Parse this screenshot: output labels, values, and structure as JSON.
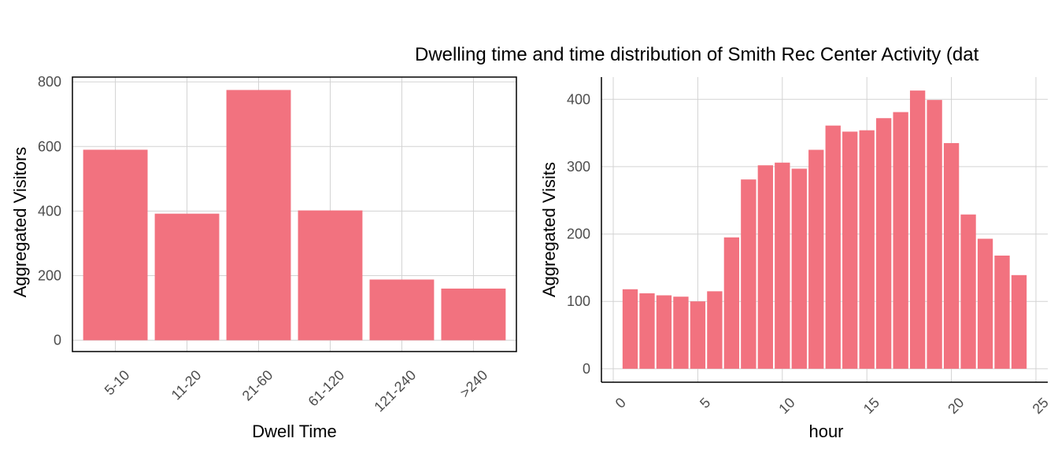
{
  "title": "Dwelling time and time distribution of Smith Rec Center Activity (dat",
  "colors": {
    "bar": "#f2727f",
    "grid": "#d3d3d3",
    "axis_text": "#4d4d4d"
  },
  "chart_data": [
    {
      "type": "bar",
      "xlabel": "Dwell Time",
      "ylabel": "Aggregated Visitors",
      "categories": [
        "5-10",
        "11-20",
        "21-60",
        "61-120",
        "121-240",
        ">240"
      ],
      "values": [
        590,
        392,
        775,
        402,
        188,
        160
      ],
      "ylim": [
        -35,
        815
      ],
      "yticks": [
        0,
        200,
        400,
        600,
        800
      ],
      "grid": true
    },
    {
      "type": "bar",
      "xlabel": "hour",
      "ylabel": "Aggregated Visits",
      "x": [
        1,
        2,
        3,
        4,
        5,
        6,
        7,
        8,
        9,
        10,
        11,
        12,
        13,
        14,
        15,
        16,
        17,
        18,
        19,
        20,
        21,
        22,
        23,
        24
      ],
      "values": [
        118,
        112,
        109,
        107,
        100,
        115,
        195,
        281,
        302,
        306,
        297,
        325,
        361,
        352,
        354,
        372,
        381,
        413,
        399,
        335,
        229,
        193,
        168,
        139
      ],
      "xticks": [
        0,
        5,
        10,
        15,
        20,
        25
      ],
      "yticks": [
        0,
        100,
        200,
        300,
        400
      ],
      "xlim": [
        -0.7,
        25.7
      ],
      "ylim": [
        -20,
        433
      ],
      "grid": true
    }
  ]
}
